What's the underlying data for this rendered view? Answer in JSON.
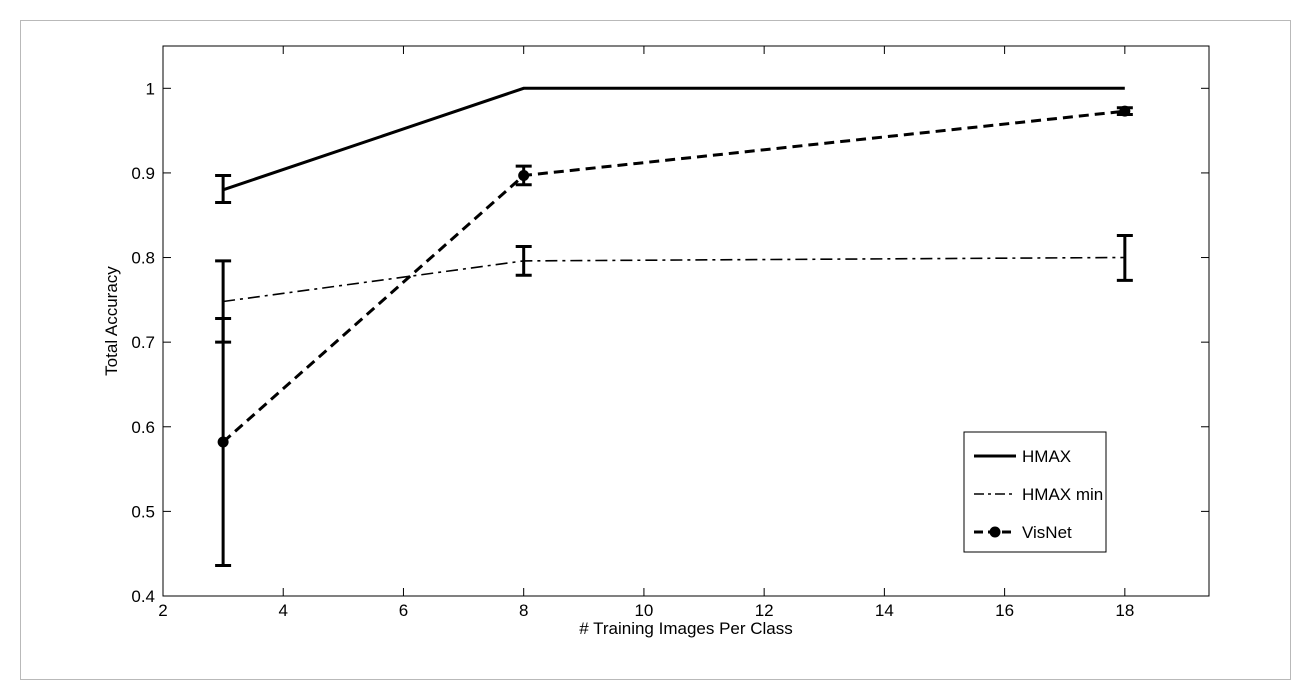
{
  "chart_data": {
    "type": "line",
    "xlabel": "# Training Images Per Class",
    "ylabel": "Total Accuracy",
    "xlim": [
      2,
      19.4
    ],
    "ylim": [
      0.4,
      1.05
    ],
    "xticks": [
      2,
      4,
      6,
      8,
      10,
      12,
      14,
      16,
      18
    ],
    "yticks": [
      0.4,
      0.5,
      0.6,
      0.7,
      0.8,
      0.9,
      1
    ],
    "legend_position": "bottom-right",
    "grid": false,
    "series": [
      {
        "name": "HMAX",
        "style": "solid",
        "marker": "none",
        "x": [
          3,
          8,
          18
        ],
        "y": [
          0.88,
          1.0,
          1.0
        ],
        "err_low": [
          0.865,
          1.0,
          1.0
        ],
        "err_high": [
          0.897,
          1.0,
          1.0
        ]
      },
      {
        "name": "HMAX min",
        "style": "dashdot",
        "marker": "none",
        "x": [
          3,
          8,
          18
        ],
        "y": [
          0.748,
          0.796,
          0.8
        ],
        "err_low": [
          0.7,
          0.779,
          0.773
        ],
        "err_high": [
          0.796,
          0.813,
          0.826
        ]
      },
      {
        "name": "VisNet",
        "style": "dashed",
        "marker": "circle",
        "x": [
          3,
          8,
          18
        ],
        "y": [
          0.582,
          0.897,
          0.973
        ],
        "err_low": [
          0.436,
          0.886,
          0.969
        ],
        "err_high": [
          0.728,
          0.908,
          0.977
        ]
      }
    ]
  }
}
